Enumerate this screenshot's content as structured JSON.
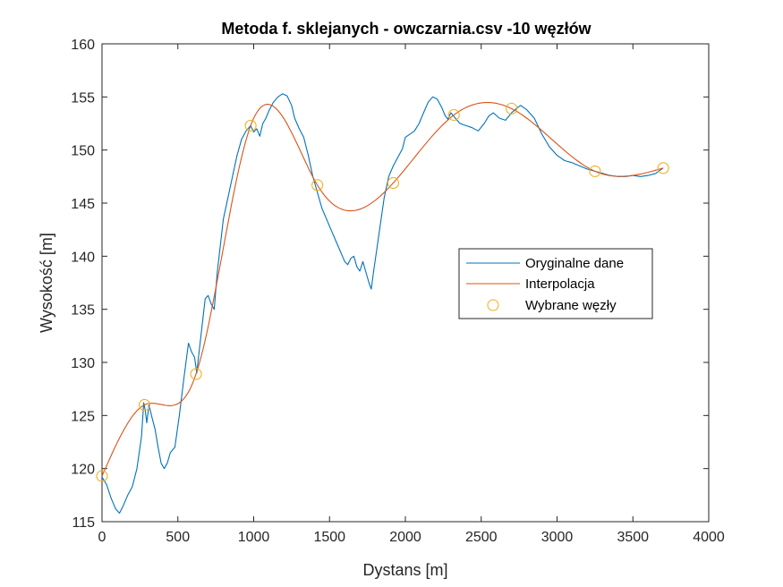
{
  "chart_data": {
    "type": "line",
    "title": "Metoda f. sklejanych - owczarnia.csv -10 węzłów",
    "xlabel": "Dystans [m]",
    "ylabel": "Wysokość [m]",
    "xlim": [
      0,
      4000
    ],
    "ylim": [
      115,
      160
    ],
    "xticks": [
      0,
      500,
      1000,
      1500,
      2000,
      2500,
      3000,
      3500,
      4000
    ],
    "yticks": [
      115,
      120,
      125,
      130,
      135,
      140,
      145,
      150,
      155,
      160
    ],
    "grid": false,
    "legend_position": "center-right",
    "series": [
      {
        "name": "Oryginalne dane",
        "color": "#0072BD",
        "style": "line",
        "x": [
          0,
          30,
          60,
          90,
          115,
          140,
          170,
          200,
          230,
          260,
          275,
          285,
          295,
          310,
          330,
          350,
          370,
          390,
          410,
          430,
          450,
          480,
          510,
          540,
          570,
          590,
          610,
          625,
          640,
          660,
          680,
          700,
          720,
          740,
          760,
          780,
          800,
          830,
          860,
          890,
          920,
          950,
          980,
          1000,
          1020,
          1040,
          1060,
          1080,
          1100,
          1130,
          1160,
          1190,
          1220,
          1250,
          1270,
          1300,
          1330,
          1360,
          1390,
          1420,
          1450,
          1480,
          1510,
          1540,
          1570,
          1600,
          1620,
          1640,
          1660,
          1680,
          1700,
          1720,
          1740,
          1760,
          1775,
          1790,
          1810,
          1830,
          1860,
          1890,
          1920,
          1950,
          1980,
          2000,
          2030,
          2060,
          2090,
          2120,
          2150,
          2180,
          2210,
          2240,
          2260,
          2280,
          2300,
          2330,
          2360,
          2400,
          2440,
          2480,
          2520,
          2550,
          2580,
          2620,
          2660,
          2700,
          2740,
          2760,
          2800,
          2850,
          2900,
          2950,
          3000,
          3050,
          3100,
          3150,
          3200,
          3250,
          3300,
          3350,
          3400,
          3450,
          3500,
          3550,
          3600,
          3650,
          3700
        ],
        "y": [
          119.2,
          118.5,
          117.2,
          116.2,
          115.8,
          116.5,
          117.5,
          118.3,
          120.0,
          123.0,
          126.2,
          125.5,
          124.3,
          126.0,
          124.8,
          123.7,
          122.0,
          120.5,
          120.0,
          120.5,
          121.5,
          122.0,
          125.0,
          128.5,
          131.8,
          131.0,
          130.5,
          129.0,
          131.0,
          133.5,
          136.0,
          136.3,
          135.5,
          135.0,
          138.5,
          141.0,
          143.5,
          145.5,
          147.5,
          149.5,
          151.0,
          151.8,
          152.3,
          151.7,
          152.0,
          151.3,
          152.5,
          153.0,
          153.7,
          154.5,
          155.0,
          155.3,
          155.1,
          154.2,
          153.0,
          152.0,
          151.2,
          149.5,
          147.5,
          146.0,
          144.5,
          143.5,
          142.5,
          141.5,
          140.5,
          139.5,
          139.2,
          139.8,
          140.0,
          139.0,
          138.6,
          139.5,
          138.5,
          137.5,
          136.9,
          138.5,
          140.5,
          142.5,
          145.5,
          147.5,
          148.5,
          149.3,
          150.1,
          151.2,
          151.5,
          151.8,
          152.5,
          153.5,
          154.5,
          155.0,
          154.8,
          154.0,
          153.3,
          152.9,
          153.5,
          153.0,
          152.5,
          152.3,
          152.1,
          151.8,
          152.5,
          153.2,
          153.5,
          153.0,
          152.8,
          153.5,
          154.0,
          154.2,
          153.8,
          153.0,
          151.5,
          150.3,
          149.5,
          149.0,
          148.8,
          148.5,
          148.2,
          148.0,
          147.8,
          147.6,
          147.5,
          147.5,
          147.6,
          147.5,
          147.6,
          147.8,
          148.3
        ]
      },
      {
        "name": "Interpolacja",
        "color": "#D95319",
        "style": "spline",
        "knots_x": [
          0,
          280,
          620,
          980,
          1420,
          1920,
          2320,
          2700,
          3250,
          3700
        ],
        "knots_y": [
          119.3,
          126.0,
          128.9,
          152.3,
          146.7,
          146.9,
          153.3,
          153.9,
          148.0,
          148.3
        ]
      },
      {
        "name": "Wybrane węzły",
        "color": "#EDB120",
        "style": "markers",
        "x": [
          0,
          280,
          620,
          980,
          1420,
          1920,
          2320,
          2700,
          3250,
          3700
        ],
        "y": [
          119.3,
          126.0,
          128.9,
          152.3,
          146.7,
          146.9,
          153.3,
          153.9,
          148.0,
          148.3
        ]
      }
    ]
  }
}
